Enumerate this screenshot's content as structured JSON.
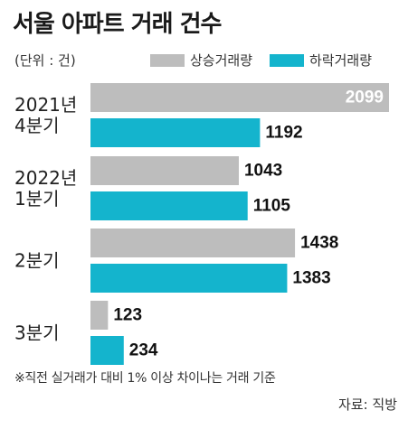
{
  "title": "서울 아파트 거래 건수",
  "unit": "(단위 : 건)",
  "note": "※직전 실거래가 대비 1% 이상 차이나는 거래 기준",
  "source": "자료: 직방",
  "colors": {
    "rise": "#bdbdbd",
    "fall": "#14b4cd"
  },
  "chart_data": {
    "type": "bar",
    "orientation": "horizontal",
    "title": "서울 아파트 거래 건수",
    "categories": [
      [
        "2021년",
        "4분기"
      ],
      [
        "2022년",
        "1분기"
      ],
      [
        "2분기"
      ],
      [
        "3분기"
      ]
    ],
    "series": [
      {
        "name": "상승거래량",
        "values": [
          2099,
          1043,
          1438,
          123
        ]
      },
      {
        "name": "하락거래량",
        "values": [
          1192,
          1105,
          1383,
          234
        ]
      }
    ],
    "xlim": [
      0,
      2099
    ],
    "legend": "top-right",
    "grid": false
  }
}
